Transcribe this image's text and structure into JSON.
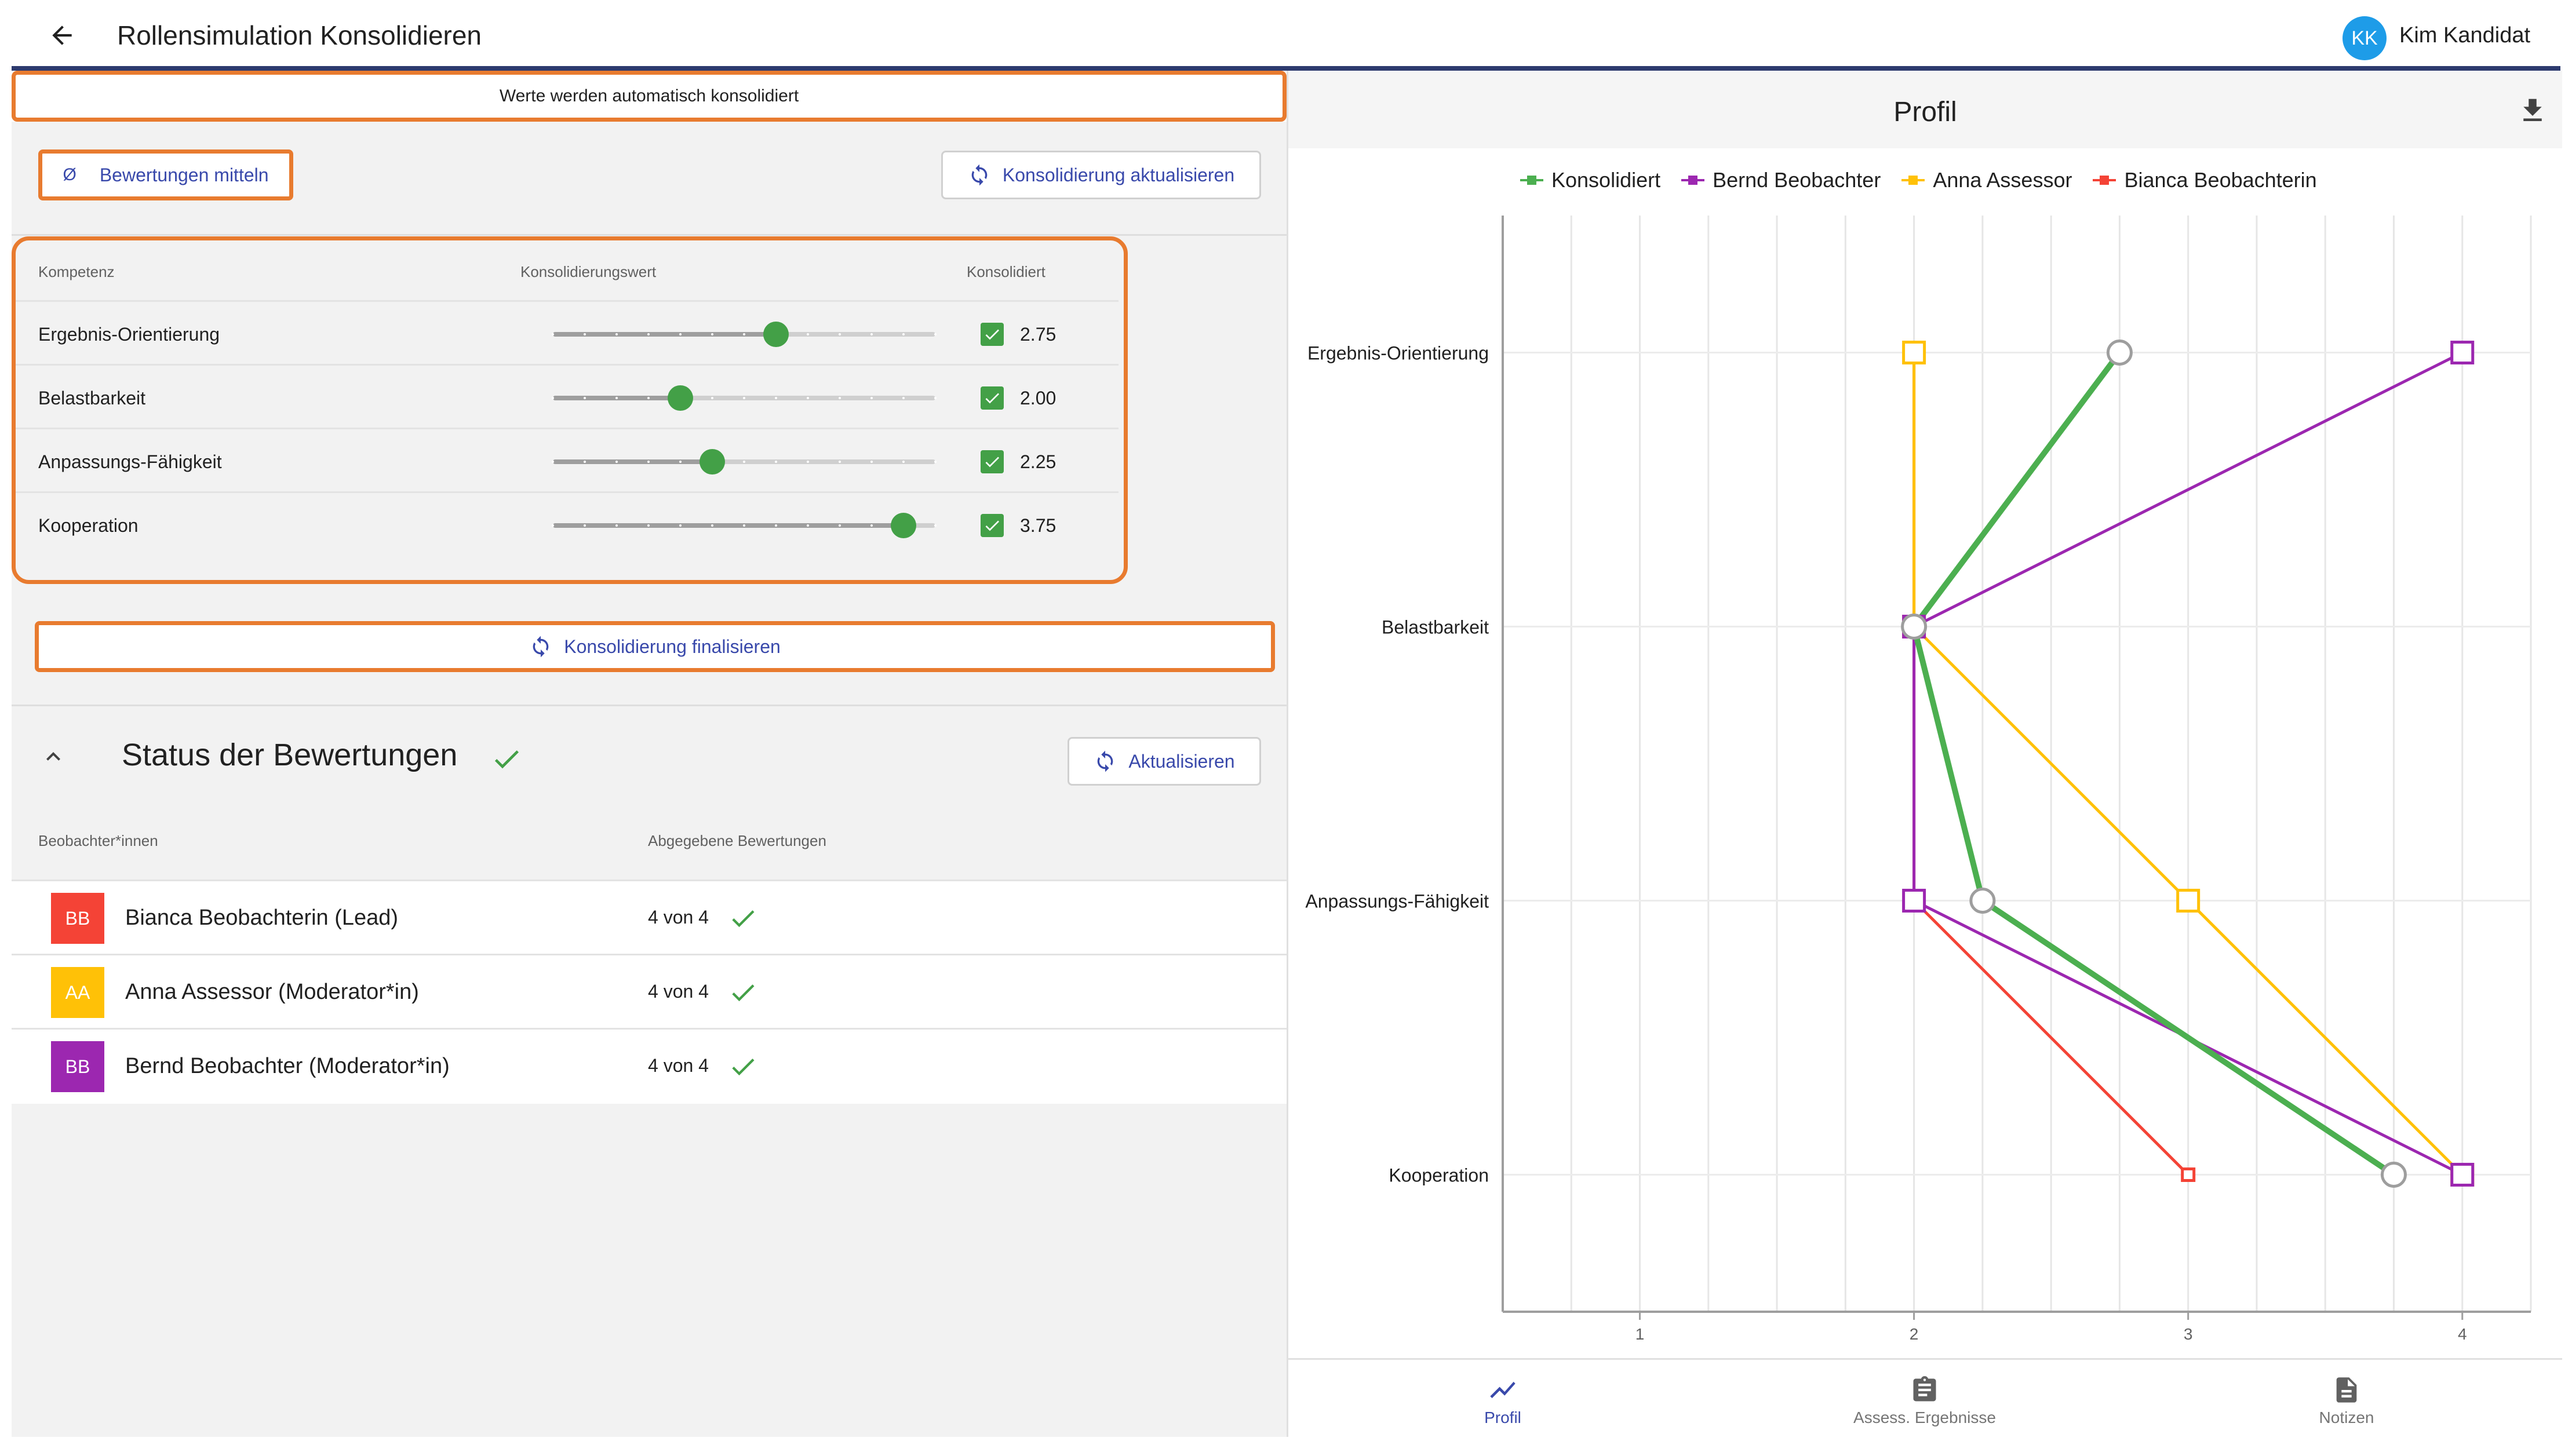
{
  "header": {
    "title": "Rollensimulation Konsolidieren",
    "user_initials": "KK",
    "user_name": "Kim Kandidat"
  },
  "consolidation": {
    "auto_banner": "Werte werden automatisch konsolidiert",
    "average_button": "Bewertungen mitteln",
    "average_icon_glyph": "Ø",
    "refresh_button": "Konsolidierung aktualisieren",
    "finalize_button": "Konsolidierung finalisieren",
    "columns": {
      "competency": "Kompetenz",
      "value": "Konsolidierungswert",
      "consolidated": "Konsolidiert"
    },
    "slider_min": 1,
    "slider_max": 4,
    "slider_step": 0.25,
    "rows": [
      {
        "name": "Ergebnis-Orientierung",
        "value": 2.75,
        "label": "2.75",
        "consolidated": true
      },
      {
        "name": "Belastbarkeit",
        "value": 2.0,
        "label": "2.00",
        "consolidated": true
      },
      {
        "name": "Anpassungs-Fähigkeit",
        "value": 2.25,
        "label": "2.25",
        "consolidated": true
      },
      {
        "name": "Kooperation",
        "value": 3.75,
        "label": "3.75",
        "consolidated": true
      }
    ]
  },
  "status": {
    "title": "Status der Bewertungen",
    "refresh_button": "Aktualisieren",
    "columns": {
      "observer": "Beobachter*innen",
      "submitted": "Abgegebene Bewertungen"
    },
    "observers": [
      {
        "initials": "BB",
        "name": "Bianca Beobachterin (Lead)",
        "count": "4 von 4",
        "color": "#f44336"
      },
      {
        "initials": "AA",
        "name": "Anna Assessor (Moderator*in)",
        "count": "4 von 4",
        "color": "#ffc107"
      },
      {
        "initials": "BB",
        "name": "Bernd Beobachter (Moderator*in)",
        "count": "4 von 4",
        "color": "#9c27b0"
      }
    ]
  },
  "profile_panel": {
    "title": "Profil",
    "download_icon": "download-icon",
    "tabs": [
      {
        "label": "Profil",
        "icon": "chart-line-icon",
        "active": true
      },
      {
        "label": "Assess. Ergebnisse",
        "icon": "clipboard-icon",
        "active": false
      },
      {
        "label": "Notizen",
        "icon": "document-icon",
        "active": false
      }
    ]
  },
  "chart_data": {
    "type": "line",
    "orientation": "vertical-categories",
    "categories": [
      "Ergebnis-Orientierung",
      "Belastbarkeit",
      "Anpassungs-Fähigkeit",
      "Kooperation"
    ],
    "x_ticks": [
      "1",
      "2",
      "3",
      "4"
    ],
    "xlim": [
      0.5,
      4.25
    ],
    "grid": true,
    "legend_position": "top",
    "series": [
      {
        "name": "Konsolidiert",
        "color": "#4caf50",
        "values": [
          2.75,
          2.0,
          2.25,
          3.75
        ],
        "marker": "circle"
      },
      {
        "name": "Bernd Beobachter",
        "color": "#9c27b0",
        "values": [
          4,
          2,
          2,
          4
        ],
        "marker": "square"
      },
      {
        "name": "Anna Assessor",
        "color": "#ffc107",
        "values": [
          2,
          2,
          3,
          4
        ],
        "marker": "square"
      },
      {
        "name": "Bianca Beobachterin",
        "color": "#f44336",
        "values": [
          2,
          2,
          2,
          3
        ],
        "marker": "square"
      }
    ]
  }
}
